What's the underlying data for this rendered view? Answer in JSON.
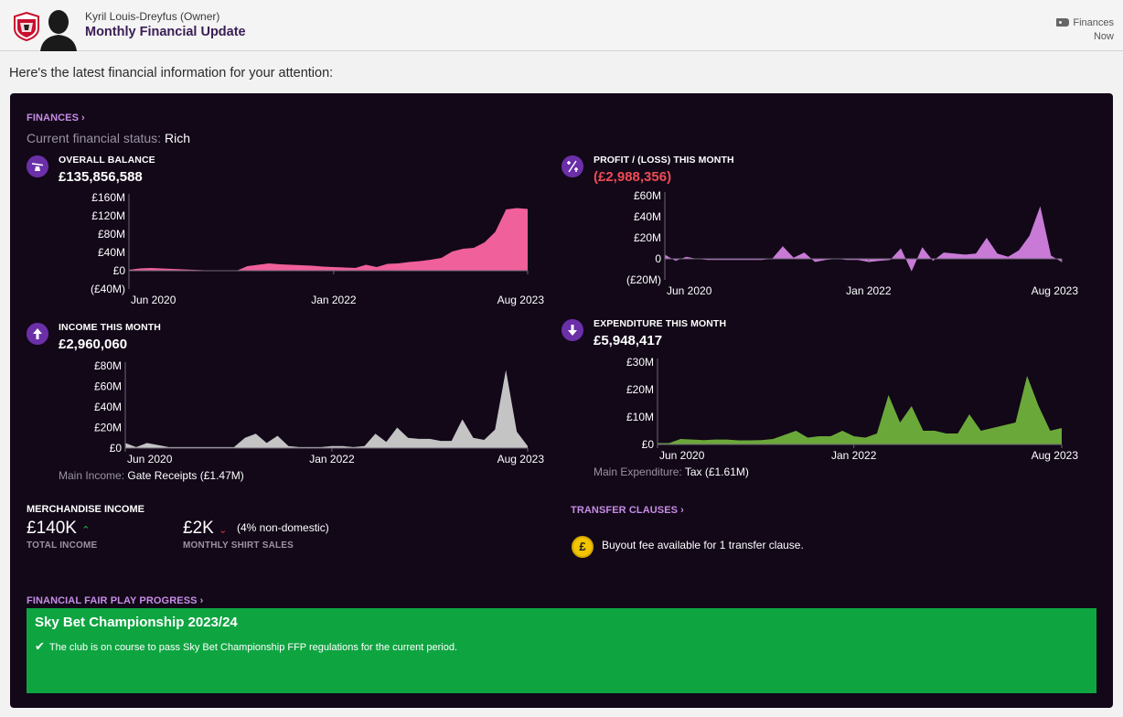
{
  "header": {
    "sender": "Kyril Louis-Dreyfus  (Owner)",
    "subject": "Monthly Financial Update",
    "category": "Finances",
    "time": "Now"
  },
  "intro": "Here's the latest financial information for your attention:",
  "finances": {
    "link": "FINANCES",
    "status_label": "Current financial status:",
    "status_value": "Rich"
  },
  "metrics": {
    "balance": {
      "label": "OVERALL BALANCE",
      "value": "£135,856,588"
    },
    "profit": {
      "label": "PROFIT / (LOSS) THIS MONTH",
      "value": "(£2,988,356)"
    },
    "income": {
      "label": "INCOME THIS MONTH",
      "value": "£2,960,060",
      "main_label": "Main Income:",
      "main_value": "Gate Receipts (£1.47M)"
    },
    "expenditure": {
      "label": "EXPENDITURE THIS MONTH",
      "value": "£5,948,417",
      "main_label": "Main Expenditure:",
      "main_value": "Tax (£1.61M)"
    }
  },
  "merch": {
    "title": "MERCHANDISE INCOME",
    "total_value": "£140K",
    "total_caption": "TOTAL INCOME",
    "shirt_value": "£2K",
    "shirt_note": "(4% non-domestic)",
    "shirt_caption": "MONTHLY SHIRT SALES"
  },
  "transfer": {
    "link": "TRANSFER CLAUSES",
    "coin_symbol": "£",
    "text": "Buyout fee available for 1 transfer clause."
  },
  "ffp": {
    "link": "FINANCIAL FAIR PLAY PROGRESS",
    "competition": "Sky Bet Championship 2023/24",
    "text": "The club is on course to pass Sky Bet Championship FFP regulations for the current period."
  },
  "colors": {
    "balance": "#f0609a",
    "profit": "#c87ad6",
    "income": "#c4c4c4",
    "expenditure": "#6ba83a",
    "ffp": "#0ea541",
    "accent_link": "#c78ce6"
  },
  "chart_data": [
    {
      "type": "area",
      "series": [
        {
          "values": [
            2,
            5,
            6,
            5,
            4,
            3,
            2,
            1,
            1,
            1,
            0,
            10,
            13,
            16,
            14,
            13,
            12,
            11,
            9,
            8,
            7,
            6,
            13,
            8,
            15,
            16,
            19,
            21,
            24,
            28,
            42,
            48,
            50,
            62,
            85,
            134,
            137,
            135
          ]
        }
      ],
      "yticks": [
        "£160M",
        "£120M",
        "£80M",
        "£40M",
        "£0",
        "(£40M)"
      ],
      "yvalues": [
        160,
        120,
        80,
        40,
        0,
        -40
      ],
      "ylim": [
        -40,
        160
      ],
      "xticks": [
        {
          "label": "Jun 2020",
          "i": 0
        },
        {
          "label": "Jan 2022",
          "i": 19
        },
        {
          "label": "Aug 2023",
          "i": 37
        }
      ]
    },
    {
      "type": "area",
      "series": [
        {
          "values": [
            4,
            -2,
            2,
            0,
            -1,
            -1,
            -1,
            -1,
            -1,
            -1,
            0,
            12,
            1,
            6,
            -3,
            -1,
            0,
            -1,
            -1,
            -3,
            -2,
            -1,
            10,
            -12,
            11,
            -2,
            6,
            5,
            4,
            5,
            20,
            5,
            2,
            8,
            22,
            50,
            3,
            -3
          ]
        }
      ],
      "yticks": [
        "£60M",
        "£40M",
        "£20M",
        "0",
        "(£20M)"
      ],
      "yvalues": [
        60,
        40,
        20,
        0,
        -20
      ],
      "ylim": [
        -20,
        60
      ],
      "xticks": [
        {
          "label": "Jun 2020",
          "i": 0
        },
        {
          "label": "Jan 2022",
          "i": 19
        },
        {
          "label": "Aug 2023",
          "i": 37
        }
      ]
    },
    {
      "type": "area",
      "series": [
        {
          "values": [
            5,
            1,
            5,
            3,
            1,
            1,
            1,
            1,
            1,
            1,
            1,
            10,
            14,
            5,
            12,
            2,
            1,
            1,
            1,
            2,
            2,
            1,
            2,
            14,
            6,
            20,
            10,
            9,
            9,
            7,
            7,
            28,
            10,
            8,
            18,
            76,
            16,
            2
          ]
        }
      ],
      "yticks": [
        "£80M",
        "£60M",
        "£40M",
        "£20M",
        "£0"
      ],
      "yvalues": [
        80,
        60,
        40,
        20,
        0
      ],
      "ylim": [
        0,
        80
      ],
      "xticks": [
        {
          "label": "Jun 2020",
          "i": 0
        },
        {
          "label": "Jan 2022",
          "i": 19
        },
        {
          "label": "Aug 2023",
          "i": 37
        }
      ]
    },
    {
      "type": "area",
      "series": [
        {
          "values": [
            0.5,
            0.5,
            2,
            1.8,
            1.6,
            1.8,
            1.8,
            1.5,
            1.5,
            1.6,
            2,
            3.5,
            5,
            2.5,
            3,
            3,
            5,
            3,
            2.5,
            4,
            18,
            8,
            14,
            5,
            5,
            4,
            4,
            11,
            5,
            6,
            7,
            8,
            25,
            14,
            5,
            6
          ]
        }
      ],
      "yticks": [
        "£30M",
        "£20M",
        "£10M",
        "£0"
      ],
      "yvalues": [
        30,
        20,
        10,
        0
      ],
      "ylim": [
        0,
        30
      ],
      "xticks": [
        {
          "label": "Jun 2020",
          "i": 0
        },
        {
          "label": "Jan 2022",
          "i": 17
        },
        {
          "label": "Aug 2023",
          "i": 35
        }
      ]
    }
  ]
}
